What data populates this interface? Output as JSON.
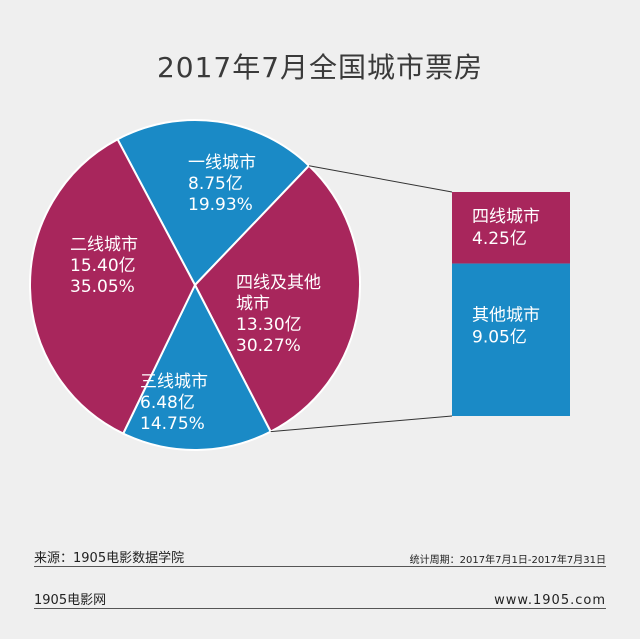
{
  "title": "2017年7月全国城市票房",
  "chart_data": {
    "type": "pie",
    "slices": [
      {
        "name": "一线城市",
        "value": 8.75,
        "value_label": "8.75亿",
        "percent": 19.93,
        "percent_label": "19.93%",
        "color": "#1a8ac6"
      },
      {
        "name": "四线及其他城市",
        "value": 13.3,
        "value_label": "13.30亿",
        "percent": 30.27,
        "percent_label": "30.27%",
        "color": "#a8265c"
      },
      {
        "name": "三线城市",
        "value": 6.48,
        "value_label": "6.48亿",
        "percent": 14.75,
        "percent_label": "14.75%",
        "color": "#1a8ac6"
      },
      {
        "name": "二线城市",
        "value": 15.4,
        "value_label": "15.40亿",
        "percent": 35.05,
        "percent_label": "35.05%",
        "color": "#a8265c"
      }
    ],
    "breakdown": {
      "of": "四线及其他城市",
      "type": "stacked-bar",
      "segments": [
        {
          "name": "四线城市",
          "value": 4.25,
          "value_label": "4.25亿",
          "color": "#a8265c"
        },
        {
          "name": "其他城市",
          "value": 9.05,
          "value_label": "9.05亿",
          "color": "#1a8ac6"
        }
      ]
    }
  },
  "footer": {
    "source": "来源：1905电影数据学院",
    "period": "统计周期：2017年7月1日-2017年7月31日",
    "brand": "1905电影网",
    "site": "www.1905.com"
  }
}
